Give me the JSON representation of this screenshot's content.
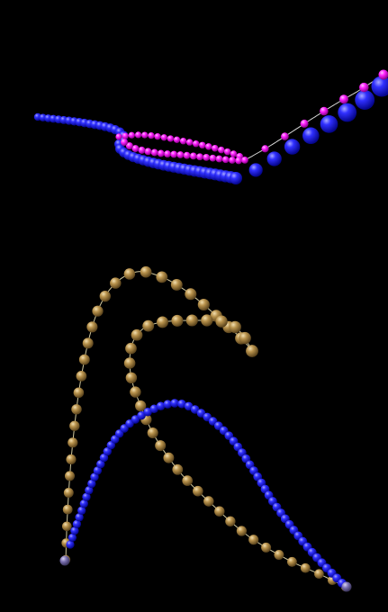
{
  "scene": {
    "background": "#000000",
    "colors": {
      "blue": "#2222ff",
      "blue_highlight": "#9a9aff",
      "magenta": "#ff22ff",
      "magenta_highlight": "#ffb0ff",
      "gold": "#b9944f",
      "gold_highlight": "#efd9a8",
      "thread": "#f4e7b0",
      "endpoint": "#7a70b0"
    }
  }
}
